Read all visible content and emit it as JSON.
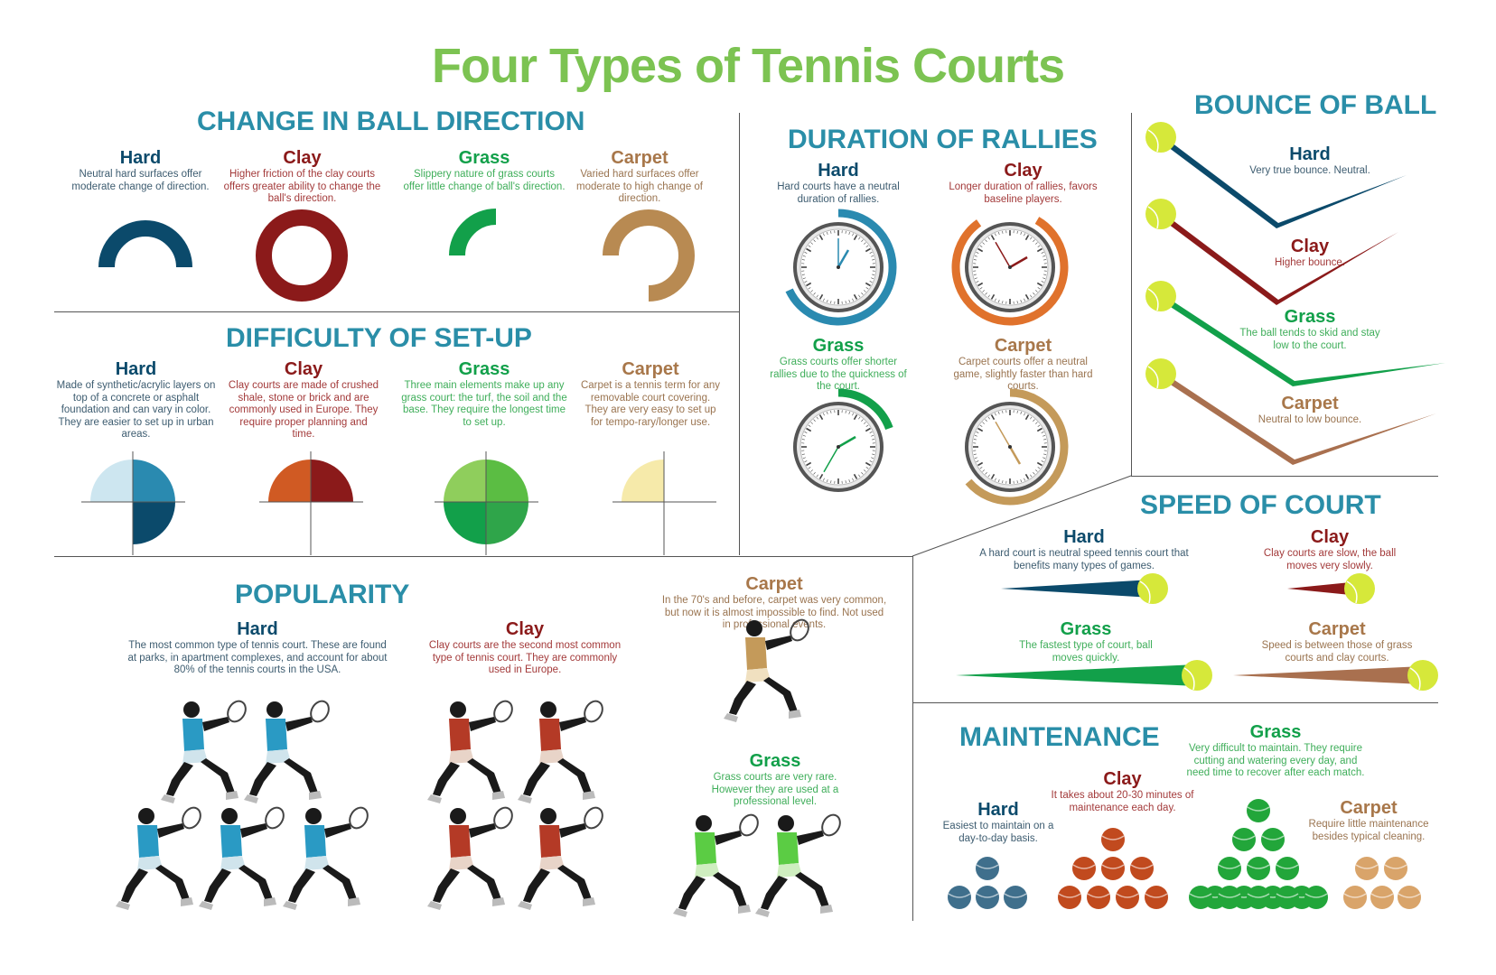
{
  "title": "Four Types of Tennis Courts",
  "colors": {
    "hard": "#0b4a6b",
    "clay": "#8b1a1a",
    "grass": "#12a04a",
    "carpet": "#b88a52",
    "title_green": "#7cc352",
    "section_blue": "#2a8ea8"
  },
  "direction": {
    "title": "CHANGE IN BALL DIRECTION",
    "hard": {
      "label": "Hard",
      "desc": "Neutral hard surfaces offer moderate change of direction."
    },
    "clay": {
      "label": "Clay",
      "desc": "Higher friction of the clay courts offers greater ability to change the ball's direction."
    },
    "grass": {
      "label": "Grass",
      "desc": "Slippery nature of grass courts offer little change of ball's direction."
    },
    "carpet": {
      "label": "Carpet",
      "desc": "Varied hard surfaces offer moderate to high change of direction."
    }
  },
  "setup": {
    "title": "DIFFICULTY OF SET-UP",
    "hard": {
      "label": "Hard",
      "desc": "Made of synthetic/acrylic layers on top of a concrete or asphalt foundation and can vary in color. They are easier to set up in urban areas."
    },
    "clay": {
      "label": "Clay",
      "desc": "Clay courts are made of crushed shale, stone or brick and are commonly used in Europe. They require proper planning and time."
    },
    "grass": {
      "label": "Grass",
      "desc": "Three main elements make up any grass court: the turf, the soil and the base. They require the longest time to set up."
    },
    "carpet": {
      "label": "Carpet",
      "desc": "Carpet is a tennis term for any removable court covering. They are very easy to set up for tempo-rary/longer use."
    }
  },
  "rallies": {
    "title": "DURATION OF RALLIES",
    "hard": {
      "label": "Hard",
      "desc": "Hard courts have a neutral duration of rallies."
    },
    "clay": {
      "label": "Clay",
      "desc": "Longer duration of rallies, favors baseline players."
    },
    "grass": {
      "label": "Grass",
      "desc": "Grass courts offer shorter rallies due to the quickness of the court."
    },
    "carpet": {
      "label": "Carpet",
      "desc": "Carpet courts offer a neutral game, slightly faster than hard courts."
    }
  },
  "bounce": {
    "title": "BOUNCE OF BALL",
    "hard": {
      "label": "Hard",
      "desc": "Very true bounce. Neutral."
    },
    "clay": {
      "label": "Clay",
      "desc": "Higher bounce."
    },
    "grass": {
      "label": "Grass",
      "desc": "The ball tends to skid and stay low to the court."
    },
    "carpet": {
      "label": "Carpet",
      "desc": "Neutral to low bounce."
    }
  },
  "speed": {
    "title": "SPEED OF COURT",
    "hard": {
      "label": "Hard",
      "desc": "A hard court is neutral speed tennis court that benefits many types of games."
    },
    "clay": {
      "label": "Clay",
      "desc": "Clay courts are slow, the ball moves very slowly."
    },
    "grass": {
      "label": "Grass",
      "desc": "The fastest type of court, ball moves quickly."
    },
    "carpet": {
      "label": "Carpet",
      "desc": "Speed is between those of grass courts and clay courts."
    }
  },
  "popularity": {
    "title": "POPULARITY",
    "hard": {
      "label": "Hard",
      "desc": "The most common type of tennis court. These are found at parks, in apartment complexes, and account for about 80% of the tennis courts in the USA.",
      "players": 5
    },
    "clay": {
      "label": "Clay",
      "desc": "Clay courts are the second most common type of tennis court. They are commonly used in Europe.",
      "players": 4
    },
    "carpet": {
      "label": "Carpet",
      "desc": "In the 70's and before, carpet was very common, but now it is almost impossible to find. Not used in professional events.",
      "players": 1
    },
    "grass": {
      "label": "Grass",
      "desc": "Grass courts are very rare. However they are used at a professional level.",
      "players": 2
    }
  },
  "maintenance": {
    "title": "MAINTENANCE",
    "hard": {
      "label": "Hard",
      "desc": "Easiest to maintain on a day-to-day basis.",
      "balls": 4
    },
    "clay": {
      "label": "Clay",
      "desc": "It takes about 20-30 minutes of maintenance each day.",
      "balls": 8
    },
    "grass": {
      "label": "Grass",
      "desc": "Very difficult to maintain. They require cutting and watering every day, and need time to recover after each match.",
      "balls": 15
    },
    "carpet": {
      "label": "Carpet",
      "desc": "Require little maintenance besides typical cleaning.",
      "balls": 5
    }
  }
}
